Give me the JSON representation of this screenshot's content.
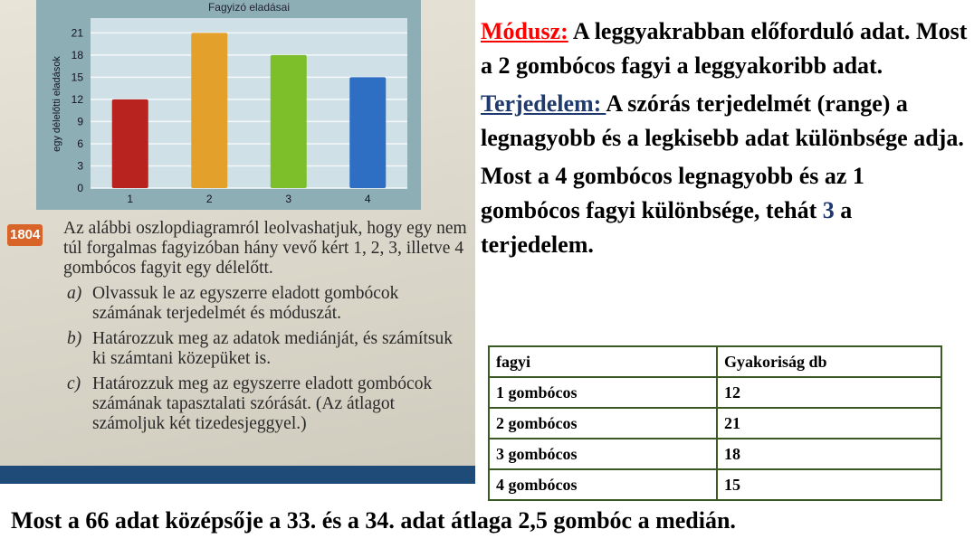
{
  "photo": {
    "chart_data": {
      "type": "bar",
      "title": "Fagyizó eladásai",
      "ylabel": "egy délelőtti eladások",
      "xlabel": "",
      "categories": [
        "1",
        "2",
        "3",
        "4"
      ],
      "values": [
        12,
        21,
        18,
        15
      ],
      "yticks": [
        "0",
        "3",
        "6",
        "9",
        "12",
        "15",
        "18",
        "21"
      ],
      "ylim": [
        0,
        23
      ],
      "grid": true,
      "colors": [
        "#b8231f",
        "#e3a02a",
        "#7cbf2a",
        "#2e6fc4"
      ]
    },
    "task": {
      "number": "1804",
      "intro": "Az alábbi oszlopdiagramról leolvashatjuk, hogy egy nem túl forgalmas fagyizóban hány vevő kért 1, 2, 3, illetve 4 gombócos fagyit egy délelőtt.",
      "items": [
        {
          "label": "a)",
          "text": "Olvassuk le az egyszerre eladott gombócok számának terjedelmét és móduszát."
        },
        {
          "label": "b)",
          "text": "Határozzuk meg az adatok mediánját, és számítsuk ki számtani közepüket is."
        },
        {
          "label": "c)",
          "text": "Határozzuk meg az egyszerre eladott gombócok számának tapasztalati szórását. (Az átlagot számoljuk két tizedesjeggyel.)"
        }
      ]
    }
  },
  "explanation": {
    "mode_term": "Módusz:",
    "mode_text": " A leggyakrabban előforduló adat. Most a 2 gombócos fagyi a leggyakoribb adat.",
    "range_term": "Terjedelem: ",
    "range_text": "A szórás terjedelmét (range) a legnagyobb és a legkisebb adat különbsége adja.",
    "range_example_1": "Most a 4 gombócos legnagyobb és az 1 gombócos fagyi különbsége, tehát ",
    "range_value": "3",
    "range_example_2": " a terjedelem.",
    "colors": {
      "mode": "#ff0000",
      "range": "#1f3a6e"
    }
  },
  "table": {
    "headers": [
      "fagyi",
      "Gyakoriság db"
    ],
    "rows": [
      [
        "1 gombócos",
        "12"
      ],
      [
        "2 gombócos",
        "21"
      ],
      [
        "3 gombócos",
        "18"
      ],
      [
        "4 gombócos",
        "15"
      ]
    ]
  },
  "median_text": "Most a 66 adat középsője a 33. és a 34. adat átlaga 2,5 gombóc a medián."
}
